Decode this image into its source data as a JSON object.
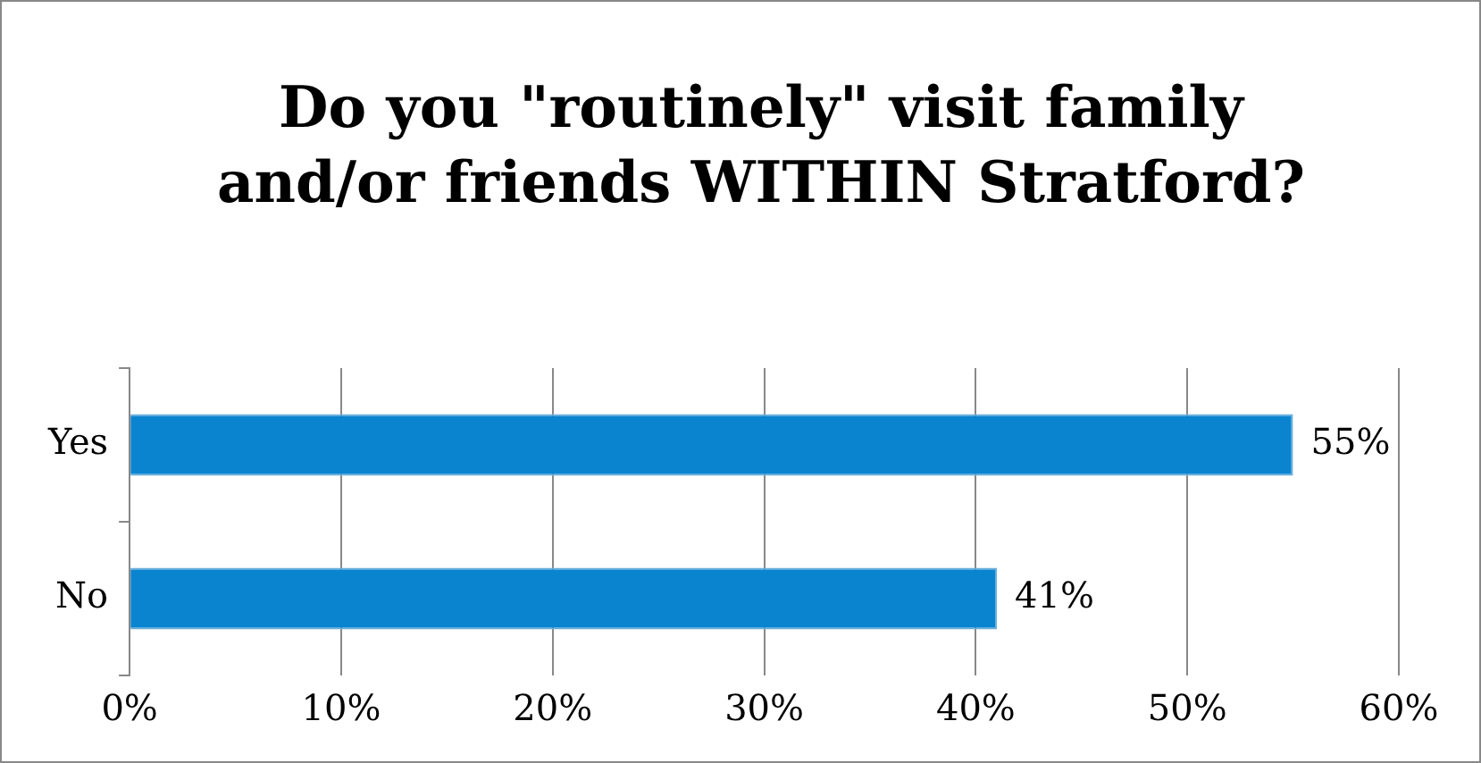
{
  "chart_data": {
    "type": "bar",
    "orientation": "horizontal",
    "title": "Do you \"routinely\" visit family and/or friends WITHIN Stratford?",
    "categories": [
      "Yes",
      "No"
    ],
    "values": [
      55,
      41
    ],
    "color": "#0b84d0",
    "value_labels": [
      "55%",
      "41%"
    ],
    "xlim": [
      0,
      60
    ],
    "xticks": [
      {
        "value": 0,
        "label": "0%"
      },
      {
        "value": 10,
        "label": "10%"
      },
      {
        "value": 20,
        "label": "20%"
      },
      {
        "value": 30,
        "label": "30%"
      },
      {
        "value": 40,
        "label": "40%"
      },
      {
        "value": 50,
        "label": "50%"
      },
      {
        "value": 60,
        "label": "60%"
      }
    ],
    "grid": "x",
    "legend": false
  }
}
